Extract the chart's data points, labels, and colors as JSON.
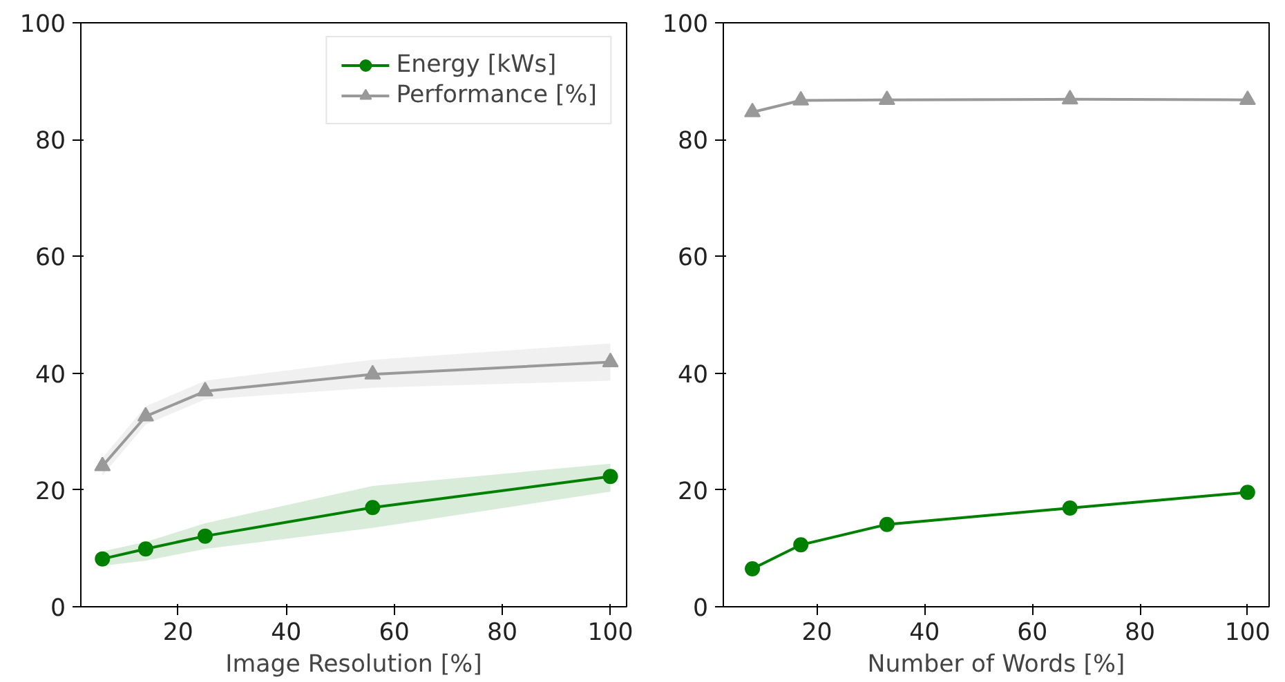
{
  "chart_data": [
    {
      "type": "line",
      "xlabel": "Image Resolution [%]",
      "xlim": [
        2,
        103
      ],
      "xticks": [
        20,
        40,
        60,
        80,
        100
      ],
      "ylim": [
        0,
        100
      ],
      "yticks": [
        0,
        20,
        40,
        60,
        80,
        100
      ],
      "grid": false,
      "legend": "top right",
      "line_style": "solid",
      "x": [
        6,
        14,
        25,
        56,
        100
      ],
      "series": [
        {
          "name": "Energy [kWs]",
          "color": "#008000",
          "marker": "circle",
          "values": [
            8.2,
            9.9,
            12.1,
            17.0,
            22.3
          ],
          "lower": [
            7.0,
            7.9,
            9.9,
            13.5,
            19.7
          ],
          "upper": [
            9.5,
            11.1,
            14.3,
            20.7,
            24.5
          ]
        },
        {
          "name": "Performance [%]",
          "color": "#999999",
          "marker": "triangle",
          "values": [
            24.1,
            32.6,
            36.9,
            39.8,
            41.9
          ],
          "lower": [
            22.5,
            31.2,
            35.5,
            37.5,
            38.7
          ],
          "upper": [
            25.5,
            34.3,
            38.7,
            42.3,
            45.1
          ]
        }
      ]
    },
    {
      "type": "line",
      "xlabel": "Number of Words [%]",
      "xlim": [
        2.6,
        104
      ],
      "xticks": [
        20,
        40,
        60,
        80,
        100
      ],
      "ylim": [
        0,
        100
      ],
      "yticks": [
        0,
        20,
        40,
        60,
        80,
        100
      ],
      "grid": false,
      "line_style": "solid",
      "x": [
        8,
        17,
        33,
        67,
        100
      ],
      "series": [
        {
          "color": "#008000",
          "marker": "circle",
          "values": [
            6.5,
            10.6,
            14.1,
            16.9,
            19.6
          ]
        },
        {
          "color": "#999999",
          "marker": "triangle",
          "values": [
            84.7,
            86.7,
            86.8,
            86.9,
            86.8
          ]
        }
      ]
    }
  ]
}
